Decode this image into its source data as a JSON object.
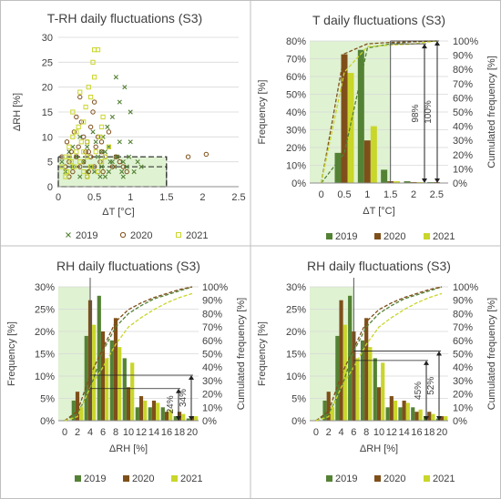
{
  "colors": {
    "y2019": "#548235",
    "y2020": "#7f4f1a",
    "y2021": "#c9d62a",
    "zone": "#dff2d2",
    "grid": "#d9d9d9",
    "axis": "#8c8c8c",
    "text": "#404040",
    "frame": "#bfbfbf"
  },
  "chart_data": [
    {
      "type": "scatter",
      "title": "T-RH daily fluctuations (S3)",
      "xlabel": "ΔT [°C]",
      "ylabel": "ΔRH [%]",
      "xlim": [
        0,
        2.5
      ],
      "ylim": [
        0,
        30
      ],
      "xticks": [
        "0",
        "0.5",
        "1",
        "1.5",
        "2",
        "2.5"
      ],
      "yticks": [
        "0",
        "5",
        "10",
        "15",
        "20",
        "25",
        "30"
      ],
      "grid": "horizontal",
      "zones": [
        {
          "x": [
            0,
            1.5
          ],
          "y": [
            0,
            6
          ]
        },
        {
          "x": [
            0,
            1.5
          ],
          "y": [
            0,
            4
          ]
        }
      ],
      "legend": "bottom",
      "series": [
        {
          "name": "2019",
          "marker": "x",
          "points": [
            [
              0.05,
              5
            ],
            [
              0.1,
              3
            ],
            [
              0.15,
              7
            ],
            [
              0.2,
              4
            ],
            [
              0.25,
              6
            ],
            [
              0.3,
              2
            ],
            [
              0.35,
              5
            ],
            [
              0.4,
              8
            ],
            [
              0.45,
              4
            ],
            [
              0.5,
              3
            ],
            [
              0.55,
              6
            ],
            [
              0.6,
              4
            ],
            [
              0.62,
              10
            ],
            [
              0.65,
              7
            ],
            [
              0.7,
              3
            ],
            [
              0.72,
              5
            ],
            [
              0.75,
              14
            ],
            [
              0.78,
              4
            ],
            [
              0.8,
              22
            ],
            [
              0.82,
              6
            ],
            [
              0.85,
              9
            ],
            [
              0.88,
              3
            ],
            [
              0.9,
              5
            ],
            [
              0.92,
              20
            ],
            [
              0.95,
              4
            ],
            [
              0.98,
              6
            ],
            [
              1.0,
              15
            ],
            [
              1.05,
              3
            ],
            [
              1.1,
              5
            ],
            [
              1.15,
              4
            ],
            [
              0.68,
              12
            ],
            [
              0.58,
              2
            ],
            [
              0.52,
              9
            ],
            [
              0.48,
              11
            ],
            [
              0.85,
              17
            ],
            [
              0.9,
              2
            ],
            [
              0.7,
              8
            ],
            [
              0.6,
              7
            ],
            [
              1.0,
              9
            ],
            [
              0.8,
              6
            ],
            [
              0.3,
              10
            ],
            [
              0.4,
              3
            ],
            [
              0.2,
              8
            ],
            [
              0.65,
              2
            ],
            [
              0.75,
              5
            ]
          ]
        },
        {
          "name": "2020",
          "marker": "o",
          "points": [
            [
              0.05,
              6
            ],
            [
              0.1,
              4
            ],
            [
              0.12,
              9
            ],
            [
              0.15,
              5
            ],
            [
              0.18,
              7
            ],
            [
              0.2,
              3
            ],
            [
              0.22,
              11
            ],
            [
              0.25,
              6
            ],
            [
              0.28,
              8
            ],
            [
              0.3,
              4
            ],
            [
              0.32,
              13
            ],
            [
              0.35,
              5
            ],
            [
              0.38,
              7
            ],
            [
              0.4,
              9
            ],
            [
              0.42,
              3
            ],
            [
              0.45,
              6
            ],
            [
              0.48,
              15
            ],
            [
              0.5,
              4
            ],
            [
              0.52,
              8
            ],
            [
              0.55,
              10
            ],
            [
              0.58,
              5
            ],
            [
              0.6,
              7
            ],
            [
              0.62,
              3
            ],
            [
              0.65,
              6
            ],
            [
              0.7,
              11
            ],
            [
              0.75,
              4
            ],
            [
              0.8,
              6
            ],
            [
              0.85,
              5
            ],
            [
              0.9,
              4
            ],
            [
              0.95,
              3
            ],
            [
              1.8,
              6
            ],
            [
              2.05,
              6.5
            ],
            [
              0.3,
              18
            ],
            [
              0.4,
              2
            ],
            [
              0.45,
              12
            ],
            [
              0.35,
              10
            ],
            [
              0.25,
              14
            ],
            [
              0.55,
              3
            ],
            [
              0.15,
              2
            ],
            [
              0.6,
              9
            ],
            [
              0.5,
              17
            ],
            [
              0.42,
              7
            ]
          ]
        },
        {
          "name": "2021",
          "marker": "sq",
          "points": [
            [
              0.05,
              4
            ],
            [
              0.1,
              6
            ],
            [
              0.12,
              3
            ],
            [
              0.15,
              8
            ],
            [
              0.18,
              5
            ],
            [
              0.2,
              10
            ],
            [
              0.22,
              4
            ],
            [
              0.25,
              7
            ],
            [
              0.28,
              12
            ],
            [
              0.3,
              5
            ],
            [
              0.32,
              9
            ],
            [
              0.35,
              3
            ],
            [
              0.38,
              16
            ],
            [
              0.4,
              6
            ],
            [
              0.42,
              20
            ],
            [
              0.45,
              4
            ],
            [
              0.48,
              25
            ],
            [
              0.5,
              27.5
            ],
            [
              0.52,
              7
            ],
            [
              0.55,
              27.5
            ],
            [
              0.58,
              10
            ],
            [
              0.6,
              5
            ],
            [
              0.62,
              14
            ],
            [
              0.65,
              6
            ],
            [
              0.7,
              8
            ],
            [
              0.3,
              19
            ],
            [
              0.35,
              13
            ],
            [
              0.4,
              2
            ],
            [
              0.25,
              11
            ],
            [
              0.45,
              18
            ],
            [
              0.2,
              15
            ],
            [
              0.55,
              3
            ],
            [
              0.5,
              22
            ],
            [
              0.6,
              12
            ],
            [
              0.15,
              6
            ],
            [
              0.4,
              9
            ],
            [
              0.1,
              2
            ],
            [
              0.35,
              7
            ]
          ]
        }
      ]
    },
    {
      "type": "bar",
      "title": "T daily fluctuations (S3)",
      "xlabel": "ΔT [°C]",
      "ylabel": "Frequency [%]",
      "y2label": "Cumulated frequency [%]",
      "categories": [
        "0",
        "0.5",
        "1",
        "1.5",
        "2",
        "2.5"
      ],
      "xlim": [
        -0.25,
        2.75
      ],
      "ylim": [
        0,
        80
      ],
      "y2lim": [
        0,
        100
      ],
      "yticks": [
        "0%",
        "10%",
        "20%",
        "30%",
        "40%",
        "50%",
        "60%",
        "70%",
        "80%"
      ],
      "y2ticks": [
        "0%",
        "10%",
        "20%",
        "30%",
        "40%",
        "50%",
        "60%",
        "70%",
        "80%",
        "90%",
        "100%"
      ],
      "zone_x": [
        -0.25,
        1.5
      ],
      "series": [
        {
          "name": "2019",
          "values": [
            0,
            17,
            75,
            7.5,
            1,
            0.5
          ]
        },
        {
          "name": "2020",
          "values": [
            0,
            72.5,
            24,
            1,
            0.5,
            0.5
          ]
        },
        {
          "name": "2021",
          "values": [
            0,
            62,
            32,
            1,
            0.5,
            0.2
          ]
        }
      ],
      "cumulative": [
        {
          "name": "2019",
          "x": [
            0,
            0.5,
            1,
            1.5,
            2,
            2.5
          ],
          "y": [
            0,
            21,
            95,
            98,
            99.5,
            100
          ]
        },
        {
          "name": "2020",
          "x": [
            0,
            0.5,
            1,
            1.5,
            2,
            2.5
          ],
          "y": [
            0,
            91,
            98,
            99,
            99.5,
            100
          ]
        },
        {
          "name": "2021",
          "x": [
            0,
            0.5,
            1,
            1.5,
            2,
            2.5
          ],
          "y": [
            0,
            78,
            96,
            97,
            98,
            100
          ]
        }
      ],
      "annotations": [
        "98%",
        "100%"
      ],
      "legend": "bottom"
    },
    {
      "type": "bar",
      "title": "RH daily fluctuations (S3)",
      "xlabel": "ΔRH [%]",
      "ylabel": "Frequency [%]",
      "y2label": "Cumulated frequency [%]",
      "categories": [
        "0",
        "2",
        "4",
        "6",
        "8",
        "10",
        "12",
        "14",
        "16",
        "18",
        "20"
      ],
      "xlim": [
        -1,
        21
      ],
      "ylim": [
        0,
        30
      ],
      "y2lim": [
        0,
        100
      ],
      "yticks": [
        "0%",
        "5%",
        "10%",
        "15%",
        "20%",
        "25%",
        "30%"
      ],
      "y2ticks": [
        "0%",
        "10%",
        "20%",
        "30%",
        "40%",
        "50%",
        "60%",
        "70%",
        "80%",
        "90%",
        "100%"
      ],
      "zone_x": [
        -1,
        4
      ],
      "series": [
        {
          "name": "2019",
          "values": [
            0,
            4.5,
            19,
            28,
            18,
            14,
            3,
            3,
            3,
            1,
            0.5
          ]
        },
        {
          "name": "2020",
          "values": [
            0,
            6.5,
            27,
            20,
            23,
            7.5,
            5.5,
            4.5,
            2,
            2,
            1
          ]
        },
        {
          "name": "2021",
          "values": [
            0,
            3,
            21.5,
            14,
            16.5,
            13,
            4.5,
            4,
            2.5,
            1.5,
            1
          ]
        }
      ],
      "cumulative": [
        {
          "name": "2019",
          "x": [
            0,
            2,
            4,
            6,
            8,
            10,
            12,
            14,
            16,
            18,
            20
          ],
          "y": [
            0,
            5,
            24,
            52,
            70,
            80,
            86,
            91,
            94,
            97,
            100
          ]
        },
        {
          "name": "2020",
          "x": [
            0,
            2,
            4,
            6,
            8,
            10,
            12,
            14,
            16,
            18,
            20
          ],
          "y": [
            0,
            7,
            34,
            54,
            74,
            83,
            88,
            92,
            95,
            98,
            100
          ]
        },
        {
          "name": "2021",
          "x": [
            0,
            2,
            4,
            6,
            8,
            10,
            12,
            14,
            16,
            18,
            20
          ],
          "y": [
            0,
            3,
            25,
            40,
            57,
            70,
            77,
            83,
            88,
            92,
            95
          ]
        }
      ],
      "annotations": [
        "24%",
        "34%"
      ],
      "legend": "bottom"
    },
    {
      "type": "bar",
      "title": "RH daily fluctuations (S3)",
      "xlabel": "ΔRH [%]",
      "ylabel": "Frequency [%]",
      "y2label": "Cumulated frequency [%]",
      "categories": [
        "0",
        "2",
        "4",
        "6",
        "8",
        "10",
        "12",
        "14",
        "16",
        "18",
        "20"
      ],
      "xlim": [
        -1,
        21
      ],
      "ylim": [
        0,
        30
      ],
      "y2lim": [
        0,
        100
      ],
      "yticks": [
        "0%",
        "5%",
        "10%",
        "15%",
        "20%",
        "25%",
        "30%"
      ],
      "y2ticks": [
        "0%",
        "10%",
        "20%",
        "30%",
        "40%",
        "50%",
        "60%",
        "70%",
        "80%",
        "90%",
        "100%"
      ],
      "zone_x": [
        -1,
        6
      ],
      "series": [
        {
          "name": "2019",
          "values": [
            0,
            4.5,
            19,
            28,
            18,
            14,
            3,
            3,
            3,
            1,
            0.5
          ]
        },
        {
          "name": "2020",
          "values": [
            0,
            6.5,
            27,
            20,
            23,
            7.5,
            5.5,
            4.5,
            2,
            2,
            1
          ]
        },
        {
          "name": "2021",
          "values": [
            0,
            3,
            21.5,
            14,
            16.5,
            13,
            4.5,
            4,
            2.5,
            1.5,
            1
          ]
        }
      ],
      "cumulative": [
        {
          "name": "2019",
          "x": [
            0,
            2,
            4,
            6,
            8,
            10,
            12,
            14,
            16,
            18,
            20
          ],
          "y": [
            0,
            5,
            24,
            52,
            70,
            80,
            86,
            91,
            94,
            97,
            100
          ]
        },
        {
          "name": "2020",
          "x": [
            0,
            2,
            4,
            6,
            8,
            10,
            12,
            14,
            16,
            18,
            20
          ],
          "y": [
            0,
            7,
            34,
            54,
            74,
            83,
            88,
            92,
            95,
            98,
            100
          ]
        },
        {
          "name": "2021",
          "x": [
            0,
            2,
            4,
            6,
            8,
            10,
            12,
            14,
            16,
            18,
            20
          ],
          "y": [
            0,
            3,
            25,
            40,
            57,
            70,
            77,
            83,
            88,
            92,
            95
          ]
        }
      ],
      "annotations": [
        "45%",
        "52%"
      ],
      "legend": "bottom"
    }
  ]
}
